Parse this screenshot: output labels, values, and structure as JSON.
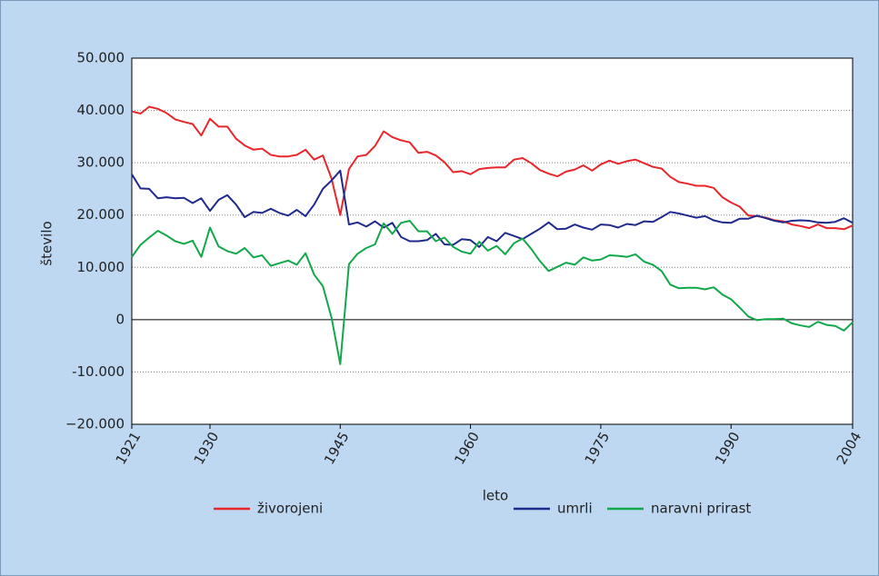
{
  "chart_data": {
    "type": "line",
    "xlabel": "leto",
    "ylabel": "število",
    "x": [
      1921,
      1922,
      1923,
      1924,
      1925,
      1926,
      1927,
      1928,
      1929,
      1930,
      1931,
      1932,
      1933,
      1934,
      1935,
      1936,
      1937,
      1938,
      1939,
      1940,
      1941,
      1942,
      1943,
      1944,
      1945,
      1946,
      1947,
      1948,
      1949,
      1950,
      1951,
      1952,
      1953,
      1954,
      1955,
      1956,
      1957,
      1958,
      1959,
      1960,
      1961,
      1962,
      1963,
      1964,
      1965,
      1966,
      1967,
      1968,
      1969,
      1970,
      1971,
      1972,
      1973,
      1974,
      1975,
      1976,
      1977,
      1978,
      1979,
      1980,
      1981,
      1982,
      1983,
      1984,
      1985,
      1986,
      1987,
      1988,
      1989,
      1990,
      1991,
      1992,
      1993,
      1994,
      1995,
      1996,
      1997,
      1998,
      1999,
      2000,
      2001,
      2002,
      2003,
      2004
    ],
    "series": [
      {
        "name": "živorojeni",
        "color": "#e8262c",
        "values": [
          39800,
          39400,
          40700,
          40300,
          39500,
          38300,
          37800,
          37400,
          35200,
          38400,
          36900,
          36900,
          34600,
          33300,
          32500,
          32700,
          31500,
          31200,
          31200,
          31500,
          32500,
          30600,
          31400,
          27000,
          20000,
          28800,
          31200,
          31500,
          33200,
          36000,
          34900,
          34300,
          33900,
          31900,
          32100,
          31400,
          30100,
          28200,
          28400,
          27800,
          28800,
          29000,
          29100,
          29100,
          30600,
          30900,
          29900,
          28600,
          27900,
          27400,
          28300,
          28700,
          29500,
          28500,
          29700,
          30400,
          29800,
          30300,
          30600,
          29900,
          29200,
          28900,
          27300,
          26300,
          26000,
          25600,
          25600,
          25200,
          23400,
          22400,
          21600,
          19900,
          19800,
          19500,
          19000,
          18800,
          18200,
          17900,
          17500,
          18200,
          17500,
          17500,
          17300,
          18000
        ]
      },
      {
        "name": "umrli",
        "color": "#1f2a8c",
        "values": [
          27800,
          25100,
          25000,
          23200,
          23400,
          23200,
          23300,
          22300,
          23200,
          20800,
          22900,
          23800,
          22000,
          19600,
          20600,
          20400,
          21200,
          20400,
          19900,
          21000,
          19800,
          22000,
          25000,
          26600,
          28500,
          18200,
          18600,
          17800,
          18800,
          17600,
          18500,
          15800,
          15000,
          15000,
          15200,
          16400,
          14400,
          14300,
          15400,
          15200,
          13900,
          15800,
          15000,
          16600,
          16000,
          15400,
          16400,
          17400,
          18600,
          17300,
          17400,
          18200,
          17600,
          17200,
          18200,
          18100,
          17600,
          18300,
          18100,
          18800,
          18700,
          19600,
          20600,
          20300,
          19900,
          19500,
          19800,
          19000,
          18600,
          18500,
          19300,
          19300,
          19900,
          19400,
          18900,
          18600,
          18900,
          19000,
          18900,
          18600,
          18500,
          18700,
          19400,
          18500
        ]
      },
      {
        "name": "naravni prirast",
        "color": "#12a84a",
        "values": [
          12000,
          14300,
          15700,
          17000,
          16100,
          15000,
          14500,
          15100,
          12000,
          17600,
          14000,
          13100,
          12600,
          13700,
          11900,
          12300,
          10300,
          10800,
          11300,
          10500,
          12700,
          8600,
          6400,
          400,
          -8500,
          10600,
          12600,
          13700,
          14400,
          18400,
          16400,
          18500,
          18900,
          16900,
          16900,
          15000,
          15700,
          13900,
          13000,
          12600,
          14900,
          13200,
          14100,
          12500,
          14600,
          15500,
          13500,
          11200,
          9300,
          10100,
          10900,
          10500,
          11900,
          11300,
          11500,
          12300,
          12200,
          12000,
          12500,
          11100,
          10500,
          9300,
          6700,
          6000,
          6100,
          6100,
          5800,
          6200,
          4800,
          3900,
          2300,
          600,
          -100,
          100,
          100,
          200,
          -700,
          -1100,
          -1400,
          -400,
          -1000,
          -1200,
          -2100,
          -500
        ]
      }
    ],
    "xlim": [
      1921,
      2004
    ],
    "xticks": [
      1921,
      1930,
      1945,
      1960,
      1975,
      1990,
      2004
    ],
    "ylim": [
      -20000,
      50000
    ],
    "yticks": [
      {
        "value": -20000,
        "label": "−20.000"
      },
      {
        "value": -10000,
        "label": "-10.000"
      },
      0,
      {
        "value": 10000,
        "label": "10.000"
      },
      {
        "value": 20000,
        "label": "20.000"
      },
      {
        "value": 30000,
        "label": "30.000"
      },
      {
        "value": 40000,
        "label": "40.000"
      },
      {
        "value": 50000,
        "label": "50.000"
      }
    ],
    "grid": true,
    "legend": "bottom"
  }
}
